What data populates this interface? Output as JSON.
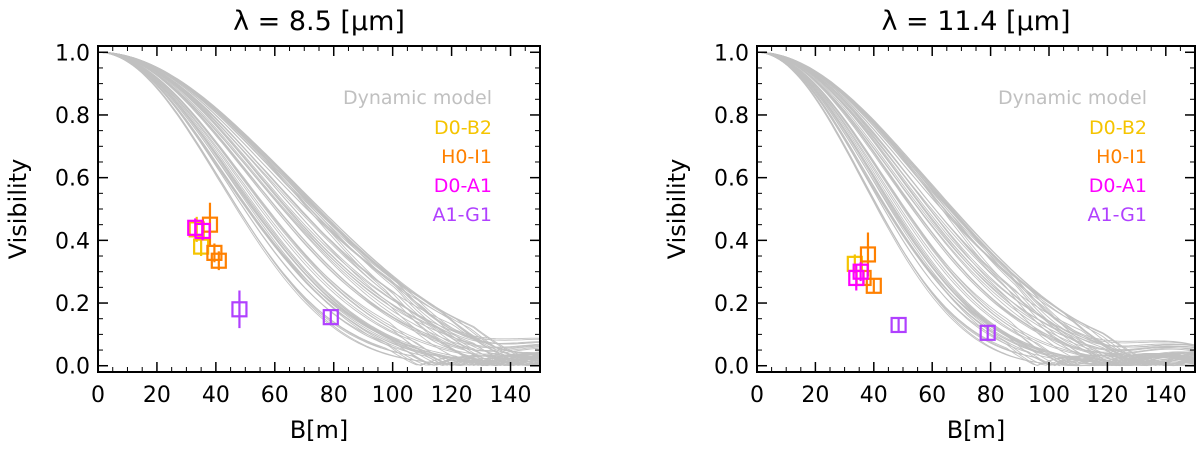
{
  "chart_data": [
    {
      "type": "scatter",
      "title": "λ = 8.5 [μm]",
      "xlabel": "B[m]",
      "ylabel": "Visibility",
      "xlim": [
        0,
        150
      ],
      "ylim": [
        -0.02,
        1.02
      ],
      "xticks": [
        0,
        20,
        40,
        60,
        80,
        100,
        120,
        140
      ],
      "yticks": [
        0.0,
        0.2,
        0.4,
        0.6,
        0.8,
        1.0
      ],
      "ytick_labels": [
        "0.0",
        "0.2",
        "0.4",
        "0.6",
        "0.8",
        "1.0"
      ],
      "grid": false,
      "legend_position": "top-right",
      "model": {
        "name": "Dynamic model",
        "color": "#c0c0c0",
        "curve_count": 60,
        "half_width_range_m": [
          48,
          74
        ],
        "ripple_amplitude": 0.05,
        "first_null_range_m": [
          115,
          150
        ]
      },
      "series": [
        {
          "name": "D0-B2",
          "color": "#f5c400",
          "points": [
            {
              "x": 33.5,
              "y": 0.435,
              "yerr": 0.04
            },
            {
              "x": 35.0,
              "y": 0.38,
              "yerr": 0.03
            }
          ]
        },
        {
          "name": "H0-I1",
          "color": "#ff8000",
          "points": [
            {
              "x": 38.0,
              "y": 0.45,
              "yerr": 0.07
            },
            {
              "x": 39.5,
              "y": 0.36,
              "yerr": 0.03
            },
            {
              "x": 41.0,
              "y": 0.335,
              "yerr": 0.03
            }
          ]
        },
        {
          "name": "D0-A1",
          "color": "#ff00ff",
          "points": [
            {
              "x": 33.0,
              "y": 0.44,
              "yerr": 0.03
            },
            {
              "x": 35.5,
              "y": 0.43,
              "yerr": 0.03
            }
          ]
        },
        {
          "name": "A1-G1",
          "color": "#b040ff",
          "points": [
            {
              "x": 48.0,
              "y": 0.18,
              "yerr": 0.06
            },
            {
              "x": 79.0,
              "y": 0.155,
              "yerr": 0.02
            }
          ]
        }
      ]
    },
    {
      "type": "scatter",
      "title": "λ = 11.4 [μm]",
      "xlabel": "B[m]",
      "ylabel": "Visibility",
      "xlim": [
        0,
        150
      ],
      "ylim": [
        -0.02,
        1.02
      ],
      "xticks": [
        0,
        20,
        40,
        60,
        80,
        100,
        120,
        140
      ],
      "yticks": [
        0.0,
        0.2,
        0.4,
        0.6,
        0.8,
        1.0
      ],
      "ytick_labels": [
        "0.0",
        "0.2",
        "0.4",
        "0.6",
        "0.8",
        "1.0"
      ],
      "grid": false,
      "legend_position": "top-right",
      "model": {
        "name": "Dynamic model",
        "color": "#c0c0c0",
        "curve_count": 60,
        "half_width_range_m": [
          42,
          66
        ],
        "ripple_amplitude": 0.05,
        "first_null_range_m": [
          100,
          140
        ]
      },
      "series": [
        {
          "name": "D0-B2",
          "color": "#f5c400",
          "points": [
            {
              "x": 33.5,
              "y": 0.325,
              "yerr": 0.03
            }
          ]
        },
        {
          "name": "H0-I1",
          "color": "#ff8000",
          "points": [
            {
              "x": 38.0,
              "y": 0.355,
              "yerr": 0.07
            },
            {
              "x": 40.0,
              "y": 0.255,
              "yerr": 0.02
            },
            {
              "x": 36.5,
              "y": 0.28,
              "yerr": 0.02
            }
          ]
        },
        {
          "name": "D0-A1",
          "color": "#ff00ff",
          "points": [
            {
              "x": 34.0,
              "y": 0.28,
              "yerr": 0.04
            },
            {
              "x": 35.5,
              "y": 0.3,
              "yerr": 0.03
            }
          ]
        },
        {
          "name": "A1-G1",
          "color": "#b040ff",
          "points": [
            {
              "x": 48.5,
              "y": 0.13,
              "yerr": 0.02
            },
            {
              "x": 79.0,
              "y": 0.105,
              "yerr": 0.02
            }
          ]
        }
      ]
    }
  ]
}
